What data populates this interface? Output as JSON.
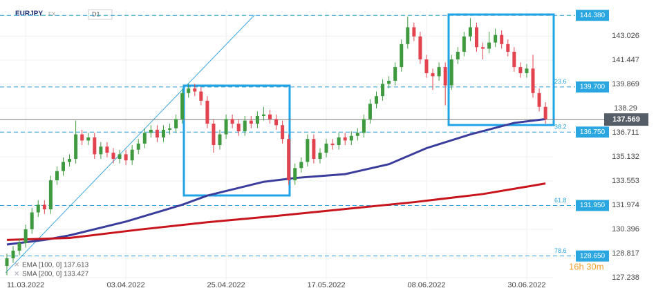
{
  "chart_data": {
    "type": "candlestick",
    "symbol": "EURJPY",
    "market": "FX",
    "interval": "D1",
    "countdown": "16h 30m",
    "x": [
      0,
      1,
      2,
      3,
      4,
      5,
      6,
      7,
      8,
      9,
      10,
      11,
      12,
      13,
      14,
      15,
      16,
      17,
      18,
      19,
      20,
      21,
      22,
      23,
      24,
      25,
      26,
      27,
      28,
      29,
      30,
      31,
      32,
      33,
      34,
      35,
      36,
      37,
      38,
      39,
      40,
      41,
      42,
      43,
      44,
      45,
      46,
      47,
      48,
      49,
      50,
      51,
      52,
      53,
      54,
      55,
      56,
      57,
      58,
      59,
      60,
      61,
      62,
      63,
      64,
      65,
      66,
      67,
      68,
      69,
      70,
      71,
      72,
      73,
      74,
      75,
      76,
      77,
      78,
      79,
      80,
      81,
      82,
      83,
      84,
      85,
      86
    ],
    "open": [
      128.0,
      128.5,
      129.0,
      129.5,
      130.4,
      131.5,
      132.0,
      131.7,
      133.6,
      134.2,
      134.8,
      135.0,
      136.6,
      136.2,
      136.4,
      135.3,
      135.8,
      135.4,
      135.0,
      135.3,
      134.9,
      135.6,
      136.0,
      136.7,
      136.9,
      136.4,
      136.9,
      137.0,
      137.6,
      139.3,
      139.6,
      139.4,
      138.8,
      137.3,
      135.9,
      136.6,
      137.6,
      137.3,
      136.8,
      137.5,
      137.3,
      137.8,
      137.9,
      137.6,
      137.2,
      136.3,
      133.6,
      134.4,
      134.8,
      136.3,
      135.0,
      135.4,
      136.0,
      135.9,
      136.4,
      136.2,
      136.5,
      136.7,
      137.6,
      138.6,
      139.1,
      139.9,
      140.1,
      141.0,
      142.5,
      143.6,
      143.0,
      141.5,
      140.6,
      140.4,
      141.0,
      139.8,
      141.5,
      142.0,
      143.0,
      143.6,
      142.3,
      142.2,
      142.6,
      143.1,
      142.5,
      142.0,
      141.0,
      140.6,
      140.9,
      139.3,
      138.4
    ],
    "high": [
      128.8,
      129.3,
      129.8,
      130.7,
      131.8,
      132.3,
      132.3,
      133.9,
      134.5,
      135.1,
      135.3,
      137.5,
      136.9,
      136.7,
      136.7,
      136.1,
      136.1,
      135.7,
      135.6,
      135.6,
      135.9,
      136.3,
      137.0,
      137.2,
      137.2,
      137.2,
      137.3,
      137.9,
      139.6,
      139.9,
      139.9,
      139.7,
      139.1,
      137.6,
      136.9,
      137.9,
      137.9,
      137.6,
      137.8,
      137.8,
      138.1,
      138.4,
      138.2,
      137.9,
      137.5,
      136.6,
      134.7,
      135.1,
      136.6,
      136.6,
      135.7,
      136.3,
      136.3,
      136.7,
      136.7,
      136.8,
      137.0,
      137.9,
      138.9,
      139.4,
      140.2,
      140.4,
      141.3,
      142.8,
      144.3,
      143.9,
      143.3,
      141.8,
      140.9,
      141.3,
      141.3,
      141.8,
      142.3,
      143.3,
      144.2,
      143.9,
      142.6,
      143.3,
      143.5,
      143.4,
      142.8,
      142.3,
      141.3,
      141.2,
      141.8,
      139.6,
      138.7
    ],
    "low": [
      127.4,
      128.2,
      128.7,
      129.2,
      130.1,
      131.2,
      131.4,
      131.4,
      133.3,
      133.9,
      134.5,
      134.7,
      135.9,
      135.9,
      135.0,
      135.0,
      135.1,
      134.7,
      134.7,
      134.6,
      134.6,
      135.3,
      135.7,
      136.4,
      136.1,
      136.1,
      136.6,
      136.7,
      137.3,
      139.0,
      139.1,
      138.5,
      137.0,
      135.4,
      135.6,
      136.3,
      137.0,
      136.5,
      136.5,
      137.0,
      137.0,
      137.5,
      137.3,
      136.9,
      136.0,
      133.3,
      133.3,
      134.1,
      134.5,
      134.7,
      134.7,
      135.1,
      135.6,
      135.6,
      135.9,
      135.9,
      136.2,
      136.4,
      137.3,
      138.3,
      138.8,
      139.6,
      139.8,
      140.7,
      142.2,
      142.7,
      141.2,
      140.3,
      139.5,
      140.1,
      138.5,
      139.5,
      141.2,
      141.7,
      142.7,
      142.0,
      141.5,
      141.9,
      142.3,
      142.2,
      141.7,
      140.7,
      140.3,
      140.3,
      139.0,
      138.1,
      137.3
    ],
    "close": [
      128.5,
      129.0,
      129.5,
      130.4,
      131.5,
      132.0,
      131.7,
      133.6,
      134.2,
      134.8,
      135.0,
      136.6,
      136.2,
      136.4,
      135.3,
      135.8,
      135.4,
      135.0,
      135.3,
      134.9,
      135.6,
      136.0,
      136.7,
      136.9,
      136.4,
      136.9,
      137.0,
      137.6,
      139.3,
      139.6,
      139.4,
      138.8,
      137.3,
      135.9,
      136.6,
      137.6,
      137.3,
      136.8,
      137.5,
      137.3,
      137.8,
      137.9,
      137.6,
      137.2,
      136.3,
      133.6,
      134.4,
      134.8,
      136.3,
      135.0,
      135.4,
      136.0,
      135.9,
      136.4,
      136.2,
      136.5,
      136.7,
      137.6,
      138.6,
      139.1,
      139.9,
      140.1,
      141.0,
      142.5,
      143.6,
      143.0,
      141.5,
      140.6,
      140.4,
      141.0,
      139.8,
      141.5,
      142.0,
      143.0,
      143.6,
      142.3,
      142.2,
      142.6,
      143.1,
      142.5,
      142.0,
      141.0,
      140.6,
      140.9,
      139.3,
      138.4,
      137.6
    ],
    "up_color": "#3f9a3f",
    "down_color": "#e2434f",
    "series": [
      {
        "name": "EMA [100, 0] 137.613",
        "color": "#3a3d9c",
        "x": [
          0,
          6,
          10,
          19,
          28,
          32,
          41,
          46,
          54,
          61,
          67,
          74,
          81,
          86
        ],
        "values": [
          129.4,
          129.7,
          130.0,
          130.9,
          132.0,
          132.6,
          133.5,
          133.75,
          134.0,
          134.65,
          135.7,
          136.6,
          137.35,
          137.6
        ]
      },
      {
        "name": "SMA [200, 0] 133.427",
        "color": "#c8141c",
        "x": [
          0,
          10,
          21,
          32,
          43,
          54,
          65,
          76,
          86
        ],
        "values": [
          129.7,
          129.83,
          130.37,
          130.86,
          131.27,
          131.72,
          132.17,
          132.7,
          133.39
        ]
      }
    ],
    "levels": [
      {
        "value": 144.38,
        "label": "144.380"
      },
      {
        "value": 139.7,
        "label": "139.700",
        "fib": "23.6"
      },
      {
        "value": 136.75,
        "label": "136.750",
        "fib": "38.2"
      },
      {
        "value": 131.95,
        "label": "131.950",
        "fib": "61.8"
      },
      {
        "value": 128.65,
        "label": "128.650",
        "fib": "78.6"
      }
    ],
    "last_price": 137.569,
    "xlim": [
      -1.1,
      87.2
    ],
    "ylim": [
      127.1,
      144.75
    ],
    "yticks": [
      143.026,
      141.447,
      139.869,
      138.29,
      136.711,
      135.132,
      133.553,
      131.974,
      130.396,
      128.817,
      127.238
    ],
    "xticks": [
      {
        "value": 3,
        "label": "11.03.2022"
      },
      {
        "value": 19,
        "label": "03.04.2022"
      },
      {
        "value": 35,
        "label": "25.04.2022"
      },
      {
        "value": 51,
        "label": "17.05.2022"
      },
      {
        "value": 67,
        "label": "08.06.2022"
      },
      {
        "value": 83,
        "label": "30.06.2022"
      }
    ],
    "grid": true
  }
}
